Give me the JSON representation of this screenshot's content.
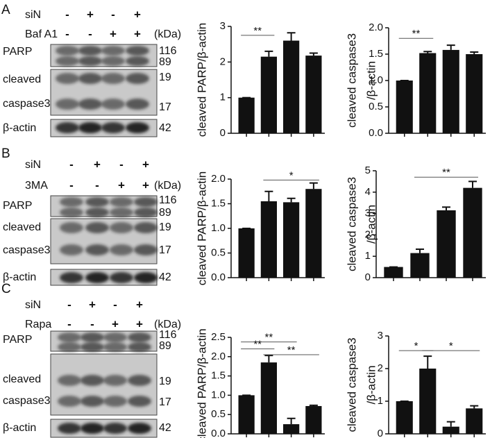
{
  "blots": [
    {
      "letter": "A",
      "treatments": [
        {
          "name": "siN",
          "signs": [
            "-",
            "+",
            "-",
            "+"
          ]
        },
        {
          "name": "Baf A1",
          "signs": [
            "-",
            "-",
            "+",
            "+"
          ]
        }
      ],
      "unit": "(kDa)",
      "labels": [
        "PARP",
        "cleaved",
        "caspase3",
        "β-actin"
      ],
      "kda": [
        116,
        89,
        19,
        17,
        42
      ]
    },
    {
      "letter": "B",
      "treatments": [
        {
          "name": "siN",
          "signs": [
            "-",
            "+",
            "-",
            "+"
          ]
        },
        {
          "name": "3MA",
          "signs": [
            "-",
            "-",
            "+",
            "+"
          ]
        }
      ],
      "unit": "(kDa)",
      "labels": [
        "PARP",
        "cleaved",
        "caspase3",
        "β-actin"
      ],
      "kda": [
        116,
        89,
        19,
        17,
        42
      ]
    },
    {
      "letter": "C",
      "treatments": [
        {
          "name": "siN",
          "signs": [
            "-",
            "+",
            "-",
            "+"
          ]
        },
        {
          "name": "Rapa",
          "signs": [
            "-",
            "-",
            "+",
            "+"
          ]
        }
      ],
      "unit": "(kDa)",
      "labels": [
        "PARP",
        "cleaved",
        "caspase3",
        "β-actin"
      ],
      "kda": [
        116,
        89,
        19,
        17,
        42
      ]
    }
  ],
  "chart_data": [
    {
      "type": "bar",
      "ylabel": [
        "cleaved PARP/β-actin"
      ],
      "categories": [
        null,
        null,
        null,
        null
      ],
      "values": [
        1.0,
        2.15,
        2.6,
        2.18
      ],
      "errors": [
        0,
        0.15,
        0.22,
        0.07
      ],
      "color": "#111111",
      "ylim": [
        0,
        3
      ],
      "yticks": [
        0,
        1,
        2,
        3
      ],
      "annotations": [
        "**"
      ]
    },
    {
      "type": "bar",
      "ylabel": [
        "cleaved caspase3",
        "/β-actin"
      ],
      "categories": [
        null,
        null,
        null,
        null
      ],
      "values": [
        1.0,
        1.52,
        1.58,
        1.5
      ],
      "errors": [
        0,
        0.03,
        0.09,
        0.04
      ],
      "color": "#111111",
      "ylim": [
        0,
        2.0
      ],
      "yticks": [
        {
          "value": 0,
          "label": "0.0"
        },
        0.5,
        {
          "value": 1,
          "label": "1.0"
        },
        1.5,
        {
          "value": 2,
          "label": "2.0"
        }
      ],
      "annotations": [
        "**"
      ]
    },
    {
      "type": "bar",
      "ylabel": [
        "cleaved PARP/β-actin"
      ],
      "categories": [
        null,
        null,
        null,
        null
      ],
      "values": [
        1.0,
        1.55,
        1.53,
        1.8
      ],
      "errors": [
        0,
        0.2,
        0.08,
        0.12
      ],
      "color": "#111111",
      "ylim": [
        0,
        2.0
      ],
      "yticks": [
        {
          "value": 0,
          "label": "0.0"
        },
        0.5,
        {
          "value": 1,
          "label": "1.0"
        },
        1.5,
        {
          "value": 2,
          "label": "2.0"
        }
      ],
      "annotations": [
        "*"
      ]
    },
    {
      "type": "bar",
      "ylabel": [
        "cleaved caspase3",
        "/β-actin"
      ],
      "categories": [
        null,
        null,
        null,
        null
      ],
      "values": [
        0.5,
        1.15,
        3.15,
        4.2
      ],
      "errors": [
        0,
        0.18,
        0.15,
        0.3
      ],
      "color": "#111111",
      "ylim": [
        0,
        5
      ],
      "yticks": [
        0,
        1,
        2,
        3,
        4,
        5
      ],
      "annotations": [
        "**"
      ]
    },
    {
      "type": "bar",
      "ylabel": [
        "cleaved PARP/β-actin"
      ],
      "categories": [
        null,
        null,
        null,
        null
      ],
      "values": [
        1.0,
        1.85,
        0.25,
        0.72
      ],
      "errors": [
        0,
        0.18,
        0.15,
        0.02
      ],
      "color": "#111111",
      "ylim": [
        0,
        2.5
      ],
      "yticks": [
        {
          "value": 0,
          "label": "0.0"
        },
        0.5,
        {
          "value": 1,
          "label": "1.0"
        },
        1.5,
        {
          "value": 2,
          "label": "2.0"
        },
        2.5
      ],
      "annotations": [
        "**",
        "**",
        "**"
      ]
    },
    {
      "type": "bar",
      "ylabel": [
        "cleaved caspase3",
        "/β-actin"
      ],
      "categories": [
        null,
        null,
        null,
        null
      ],
      "values": [
        1.0,
        2.0,
        0.22,
        0.78
      ],
      "errors": [
        0,
        0.38,
        0.15,
        0.08
      ],
      "color": "#111111",
      "ylim": [
        0,
        3
      ],
      "yticks": [
        0,
        1,
        2,
        3
      ],
      "annotations": [
        "*",
        "*"
      ]
    }
  ]
}
